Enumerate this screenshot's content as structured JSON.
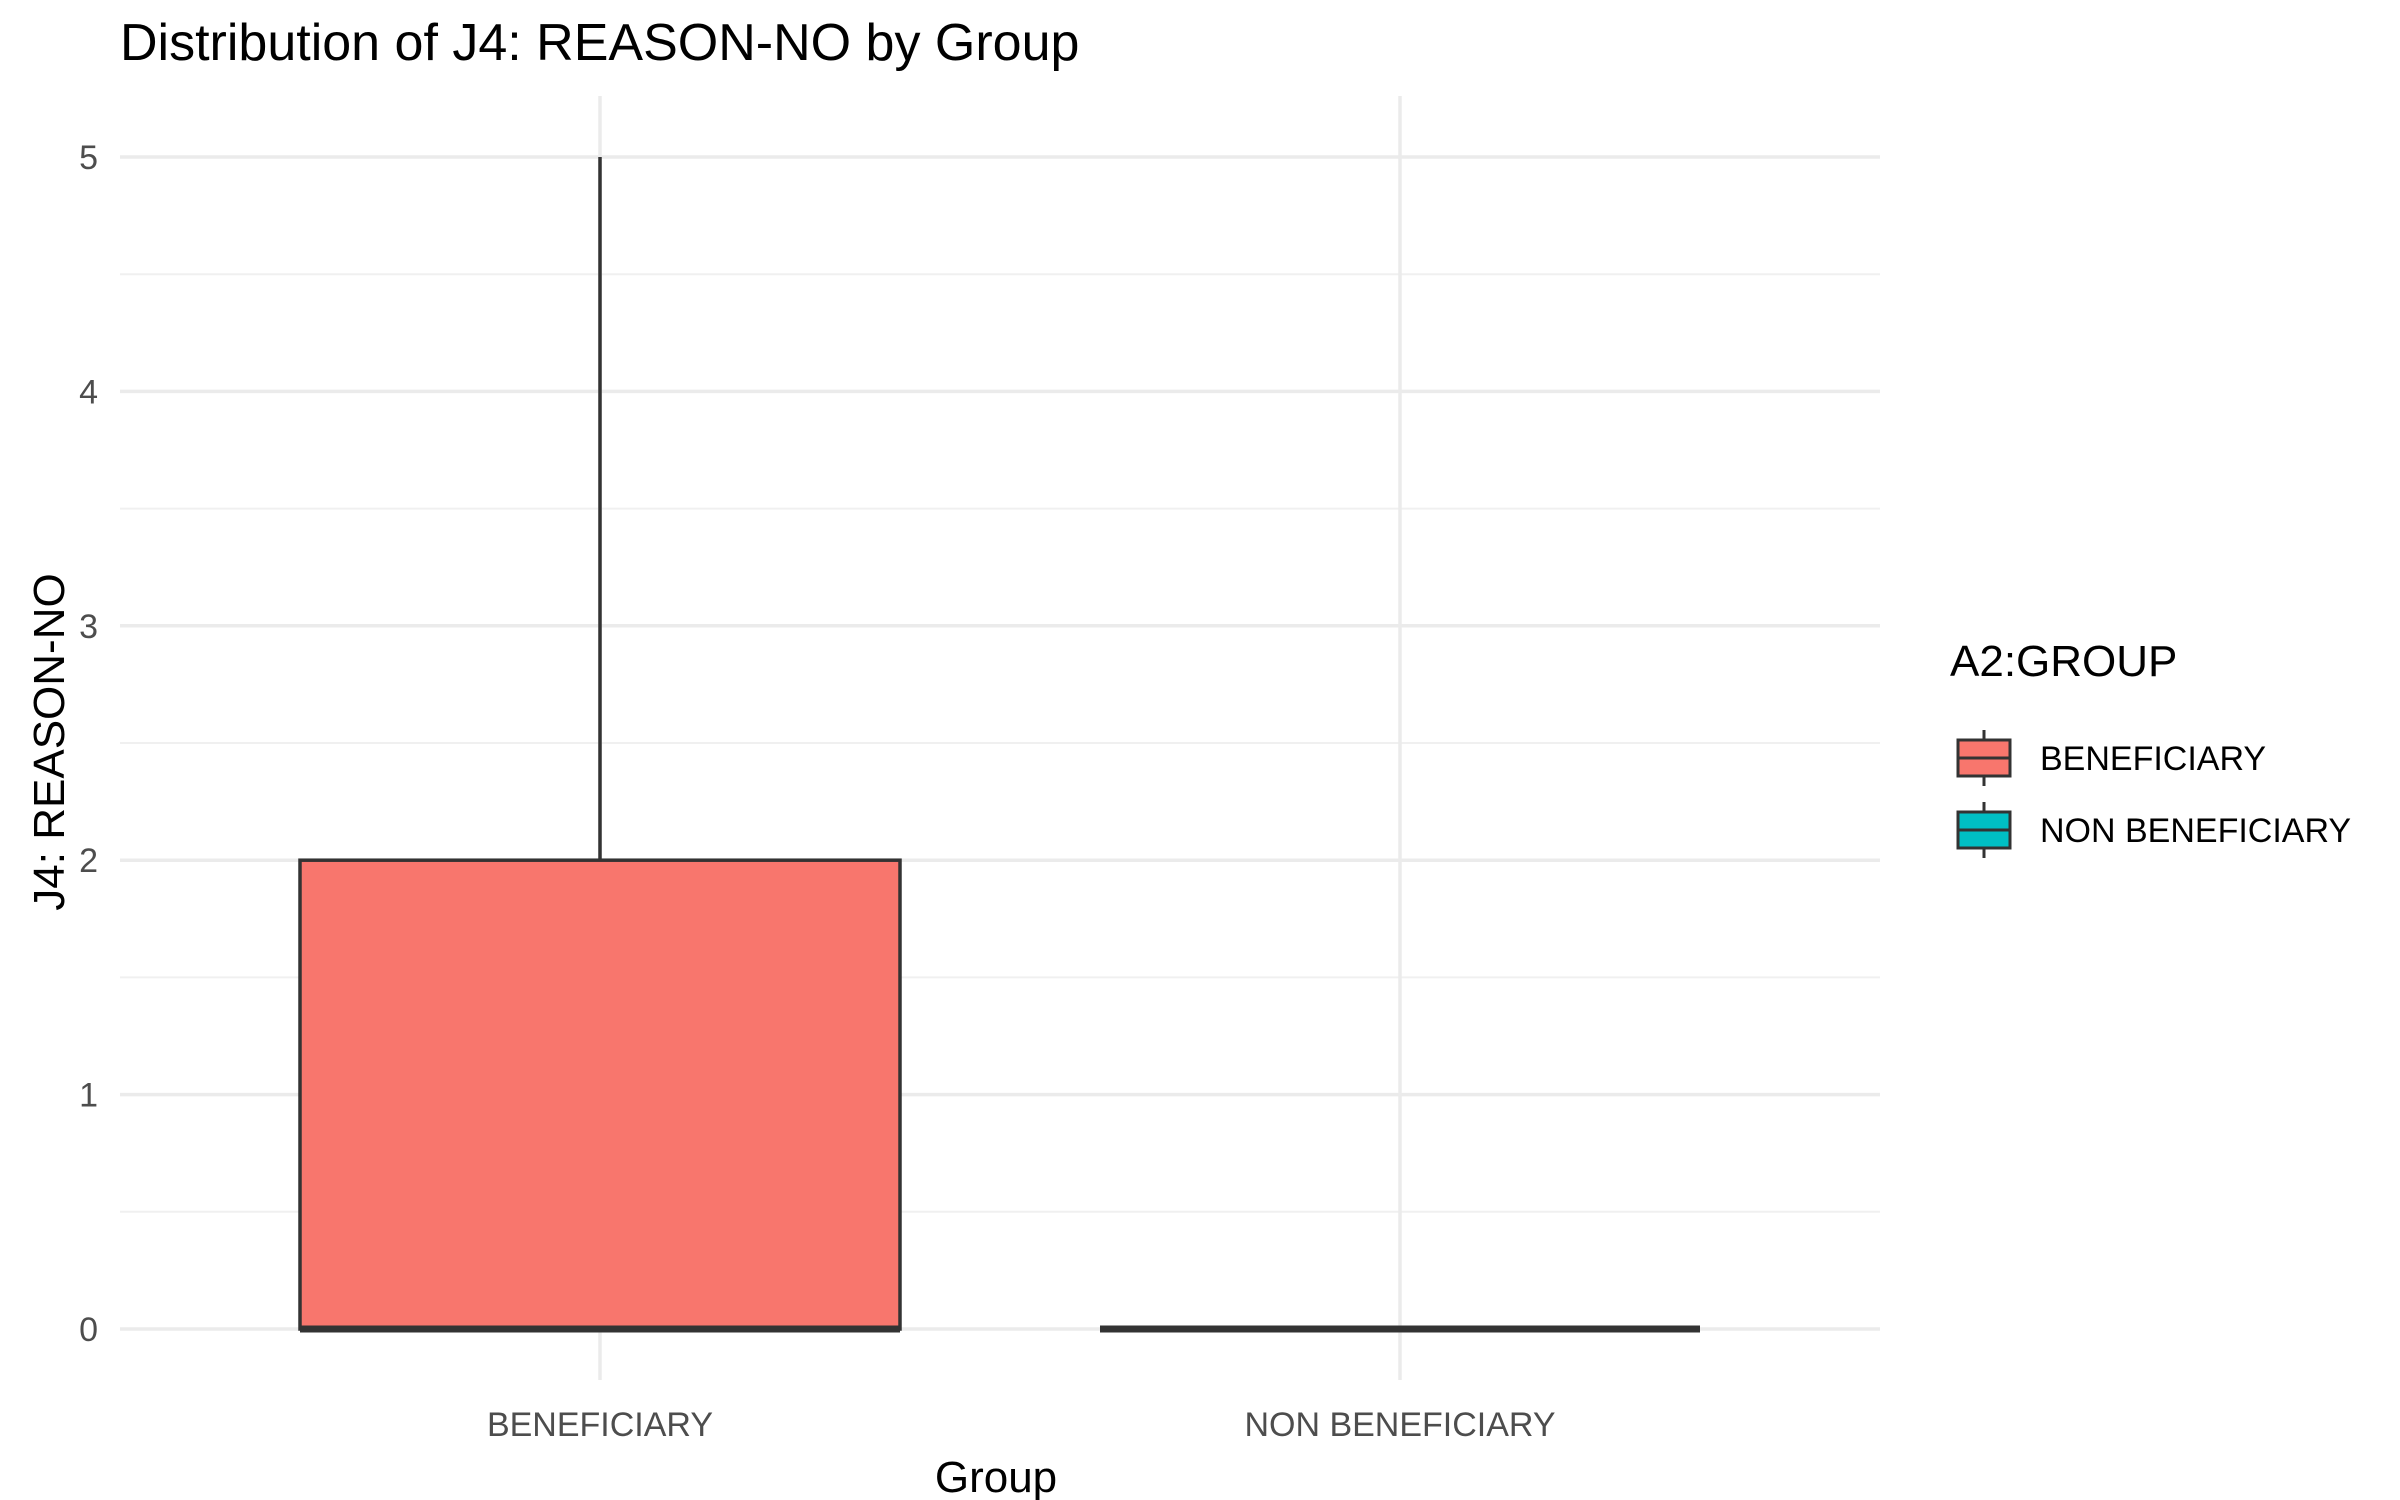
{
  "chart_data": {
    "type": "boxplot",
    "title": "Distribution of J4: REASON-NO by Group",
    "xlabel": "Group",
    "ylabel": "J4: REASON-NO",
    "categories": [
      "BENEFICIARY",
      "NON BENEFICIARY"
    ],
    "boxes": [
      {
        "category": "BENEFICIARY",
        "min": 0,
        "q1": 0,
        "median": 0,
        "q3": 2,
        "max": 5,
        "color": "#F8766D"
      },
      {
        "category": "NON BENEFICIARY",
        "min": 0,
        "q1": 0,
        "median": 0,
        "q3": 0,
        "max": 0,
        "color": "#00BFC4"
      }
    ],
    "y_ticks": [
      0,
      1,
      2,
      3,
      4,
      5
    ],
    "ylim": [
      -0.25,
      5.25
    ],
    "grid": true,
    "legend": {
      "title": "A2:GROUP",
      "position": "right",
      "entries": [
        {
          "label": "BENEFICIARY",
          "color": "#F8766D"
        },
        {
          "label": "NON BENEFICIARY",
          "color": "#00BFC4"
        }
      ]
    }
  }
}
